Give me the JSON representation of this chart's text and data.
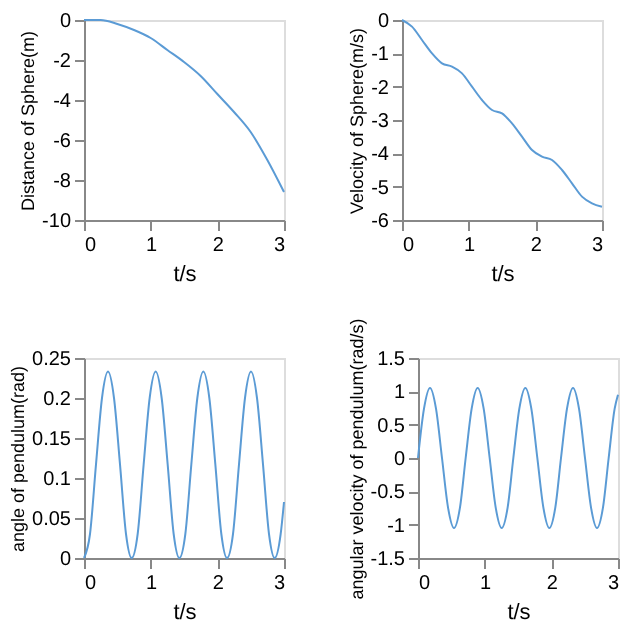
{
  "chart_data": [
    {
      "type": "line",
      "xlabel": "t/s",
      "ylabel": "Distance of Sphere(m)",
      "color": "#5b9bd5",
      "grid": false,
      "xlim": [
        0,
        3
      ],
      "xticks": [
        0,
        1,
        2,
        3
      ],
      "ylim": [
        -10,
        0
      ],
      "yticks": [
        -10,
        -8,
        -6,
        -4,
        -2,
        0
      ],
      "x": [
        0,
        0.25,
        0.5,
        0.75,
        1,
        1.25,
        1.5,
        1.75,
        2,
        2.25,
        2.5,
        2.75,
        3
      ],
      "values": [
        0,
        0,
        -0.2,
        -0.5,
        -0.9,
        -1.5,
        -2.1,
        -2.8,
        -3.7,
        -4.6,
        -5.6,
        -7.0,
        -8.6
      ]
    },
    {
      "type": "line",
      "xlabel": "t/s",
      "ylabel": "Velocity of Sphere(m/s)",
      "color": "#5b9bd5",
      "grid": false,
      "xlim": [
        0,
        3
      ],
      "xticks": [
        0,
        1,
        2,
        3
      ],
      "ylim": [
        -6,
        0
      ],
      "yticks": [
        -6,
        -5,
        -4,
        -3,
        -2,
        -1,
        0
      ],
      "x": [
        0,
        0.15,
        0.3,
        0.45,
        0.6,
        0.75,
        0.9,
        1.05,
        1.2,
        1.35,
        1.5,
        1.65,
        1.8,
        1.95,
        2.1,
        2.25,
        2.4,
        2.55,
        2.7,
        2.85,
        3.0
      ],
      "values": [
        0,
        -0.2,
        -0.6,
        -1.0,
        -1.3,
        -1.4,
        -1.6,
        -2.0,
        -2.4,
        -2.7,
        -2.8,
        -3.1,
        -3.5,
        -3.9,
        -4.1,
        -4.2,
        -4.5,
        -4.9,
        -5.3,
        -5.5,
        -5.6
      ]
    },
    {
      "type": "line",
      "xlabel": "t/s",
      "ylabel": "angle of pendulum(rad)",
      "color": "#5b9bd5",
      "grid": false,
      "xlim": [
        0,
        3
      ],
      "xticks": [
        0,
        1,
        2,
        3
      ],
      "ylim": [
        0,
        0.25
      ],
      "yticks": [
        0,
        0.05,
        0.1,
        0.15,
        0.2,
        0.25
      ],
      "x": [
        0,
        0.09,
        0.18,
        0.27,
        0.36,
        0.45,
        0.54,
        0.63,
        0.715,
        0.805,
        0.895,
        0.985,
        1.075,
        1.165,
        1.255,
        1.345,
        1.43,
        1.52,
        1.61,
        1.7,
        1.79,
        1.88,
        1.97,
        2.06,
        2.145,
        2.235,
        2.325,
        2.415,
        2.505,
        2.595,
        2.685,
        2.775,
        2.86,
        2.95,
        3.0
      ],
      "values": [
        0,
        0.03,
        0.117,
        0.2,
        0.233,
        0.2,
        0.117,
        0.03,
        0,
        0.03,
        0.117,
        0.2,
        0.233,
        0.2,
        0.117,
        0.03,
        0,
        0.03,
        0.117,
        0.2,
        0.233,
        0.2,
        0.117,
        0.03,
        0,
        0.03,
        0.117,
        0.2,
        0.233,
        0.2,
        0.117,
        0.03,
        0,
        0.03,
        0.07
      ]
    },
    {
      "type": "line",
      "xlabel": "t/s",
      "ylabel": "angular velocity of pendulum(rad/s)",
      "color": "#5b9bd5",
      "grid": false,
      "xlim": [
        0,
        3
      ],
      "xticks": [
        0,
        1,
        2,
        3
      ],
      "ylim": [
        -1.5,
        1.5
      ],
      "yticks": [
        -1.5,
        -1,
        -0.5,
        0,
        0.5,
        1,
        1.5
      ],
      "x": [
        0,
        0.09,
        0.18,
        0.27,
        0.36,
        0.45,
        0.54,
        0.63,
        0.715,
        0.805,
        0.895,
        0.985,
        1.075,
        1.165,
        1.255,
        1.345,
        1.43,
        1.52,
        1.61,
        1.7,
        1.79,
        1.88,
        1.97,
        2.06,
        2.145,
        2.235,
        2.325,
        2.415,
        2.505,
        2.595,
        2.685,
        2.775,
        2.86,
        2.95,
        3.0
      ],
      "values": [
        0,
        0.74,
        1.05,
        0.74,
        0,
        -0.74,
        -1.05,
        -0.74,
        0,
        0.74,
        1.05,
        0.74,
        0,
        -0.74,
        -1.05,
        -0.74,
        0,
        0.74,
        1.05,
        0.74,
        0,
        -0.74,
        -1.05,
        -0.74,
        0,
        0.74,
        1.05,
        0.74,
        0,
        -0.74,
        -1.05,
        -0.74,
        0,
        0.74,
        0.95
      ]
    }
  ]
}
